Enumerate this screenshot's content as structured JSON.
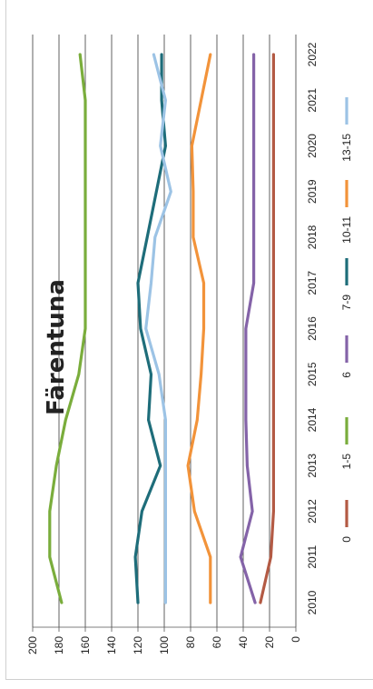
{
  "chart_data": {
    "type": "line",
    "title": "Färentuna",
    "x": [
      "2010",
      "2011",
      "2012",
      "2013",
      "2014",
      "2015",
      "2016",
      "2017",
      "2018",
      "2019",
      "2020",
      "2021",
      "2022"
    ],
    "ylim": [
      0,
      200
    ],
    "yticks": [
      0,
      20,
      40,
      60,
      80,
      100,
      120,
      140,
      160,
      180,
      200
    ],
    "grid": true,
    "orientation": "rotated-90",
    "legend_position": "right",
    "series": [
      {
        "name": "0",
        "color": "#b35a44",
        "values": [
          27,
          19,
          17,
          17,
          17,
          17,
          17,
          17,
          17,
          17,
          17,
          17,
          17
        ]
      },
      {
        "name": "1-5",
        "color": "#7aad3c",
        "values": [
          178,
          187,
          187,
          182,
          175,
          165,
          160,
          160,
          160,
          160,
          160,
          160,
          164
        ]
      },
      {
        "name": "6",
        "color": "#8463a8",
        "values": [
          31,
          42,
          33,
          37,
          38,
          38,
          38,
          32,
          32,
          32,
          32,
          32,
          32
        ]
      },
      {
        "name": "7-9",
        "color": "#1e6d7a",
        "values": [
          120,
          122,
          117,
          103,
          112,
          110,
          118,
          120,
          113,
          106,
          99,
          102,
          102
        ]
      },
      {
        "name": "10-11",
        "color": "#f2933a",
        "values": [
          65,
          65,
          77,
          82,
          75,
          72,
          70,
          70,
          78,
          78,
          79,
          72,
          65
        ]
      },
      {
        "name": "13-15",
        "color": "#9cc3e5",
        "values": [
          99,
          99,
          99,
          99,
          99,
          104,
          114,
          110,
          107,
          95,
          103,
          99,
          108
        ]
      }
    ]
  }
}
